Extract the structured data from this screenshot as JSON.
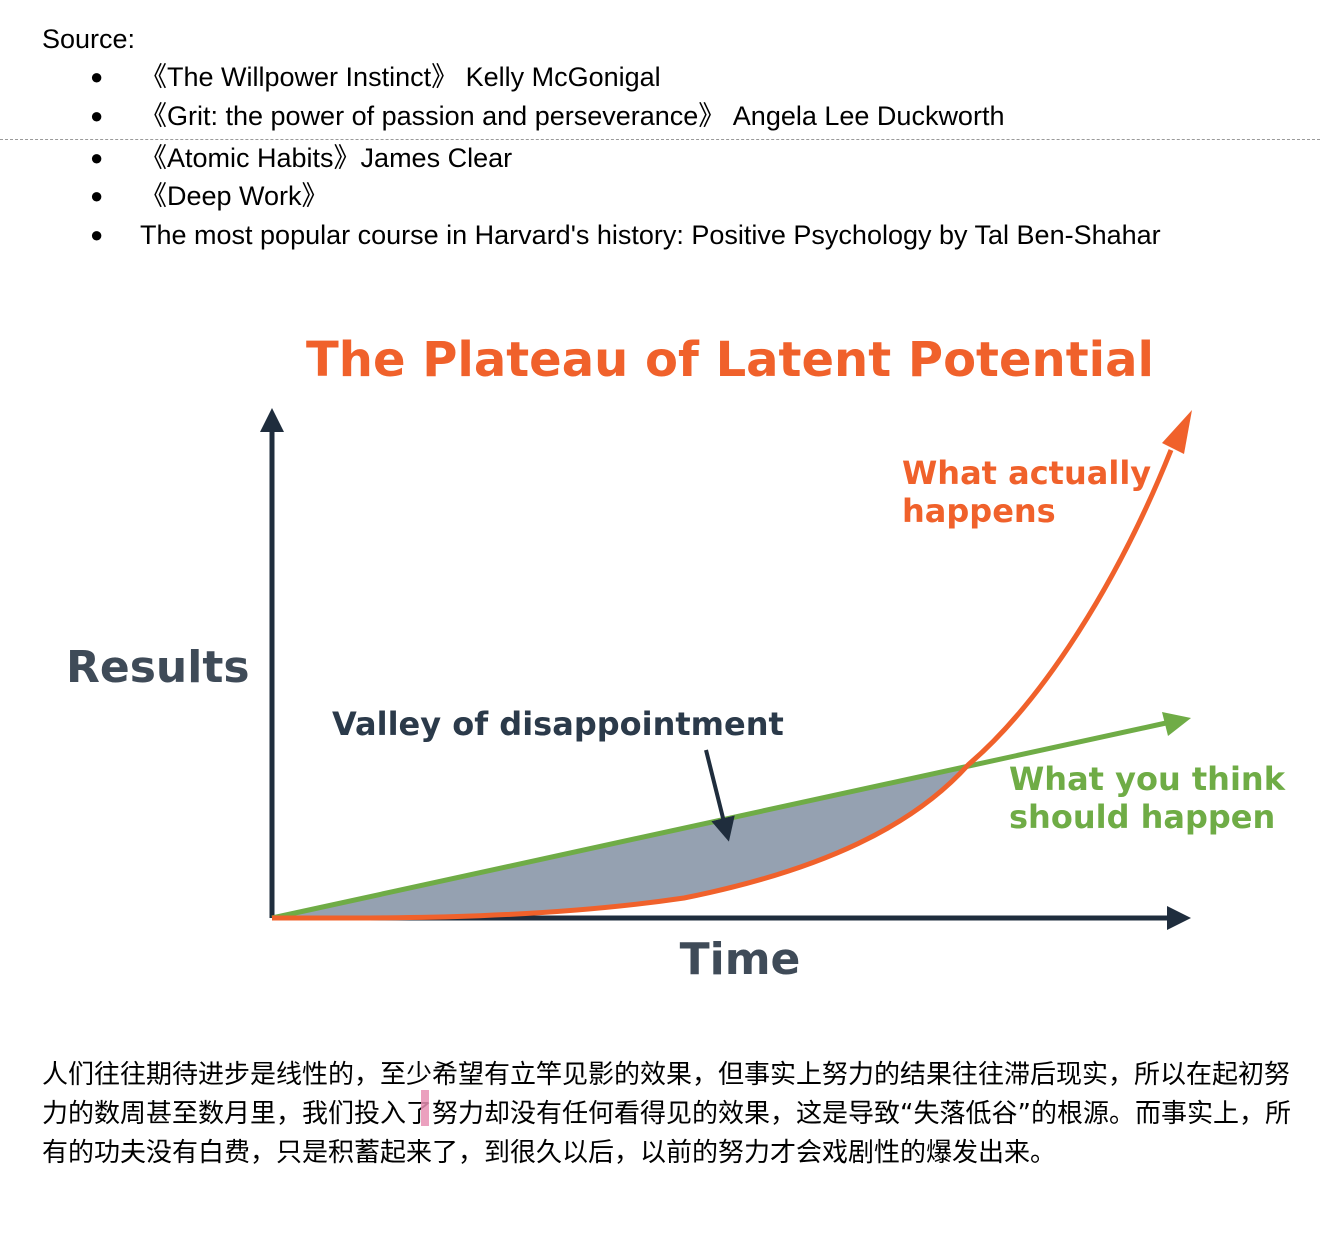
{
  "document": {
    "source_heading": "Source:",
    "sources": [
      {
        "bullet": "●",
        "text": "《The Willpower Instinct》 Kelly McGonigal"
      },
      {
        "bullet": "●",
        "text": "《Grit: the power of passion and perseverance》 Angela Lee Duckworth"
      },
      {
        "bullet": "●",
        "text": "《Atomic Habits》James Clear"
      },
      {
        "bullet": "●",
        "text": "《Deep Work》"
      },
      {
        "bullet": "●",
        "text": "The most popular course in Harvard's history: Positive Psychology by Tal Ben-Shahar"
      }
    ],
    "paragraph": "人们往往期待进步是线性的，至少希望有立竿见影的效果，但事实上努力的结果往往滞后现实，所以在起初努力的数周甚至数月里，我们投入了努力却没有任何看得见的效果，这是导致“失落低谷”的根源。而事实上，所有的功夫没有白费，只是积蓄起来了，到很久以后，以前的努力才会戏剧性的爆发出来。"
  },
  "chart_data": {
    "type": "line",
    "title": "The Plateau of Latent Potential",
    "xlabel": "Time",
    "ylabel": "Results",
    "series": [
      {
        "name": "What you think should happen",
        "label_lines": [
          "What you think",
          "should happen"
        ],
        "color": "#6fac46"
      },
      {
        "name": "What actually happens",
        "label_lines": [
          "What actually",
          "happens"
        ],
        "color": "#f0612b"
      }
    ],
    "annotations": [
      {
        "text": "Valley of disappointment",
        "color": "#2b3a4a"
      }
    ],
    "colors": {
      "title": "#f0612b",
      "axis": "#1f2d3d",
      "axis_label": "#3f4b58",
      "valley_fill": "#8f9cad"
    }
  }
}
